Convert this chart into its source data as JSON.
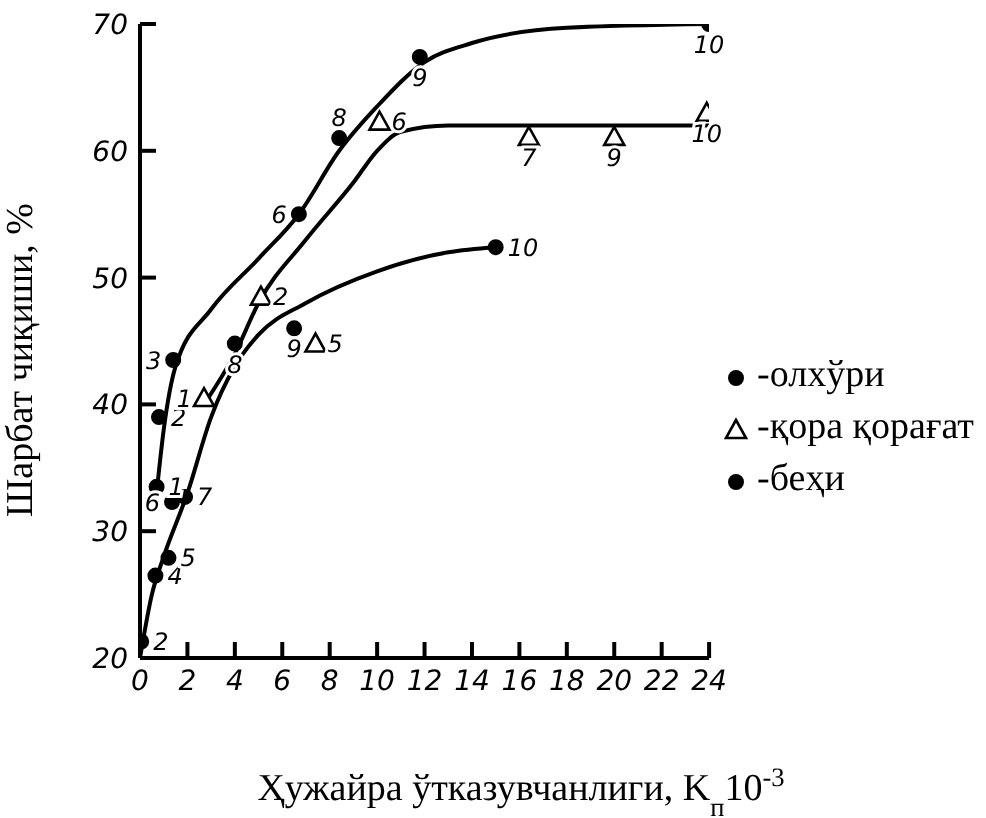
{
  "chart_data": {
    "type": "scatter",
    "xlabel": "Ҳужайра ўтказувчанлиги, K$_{п}$10$^{-3}$",
    "ylabel": "Шарбат чиқиши, %",
    "xlim": [
      0,
      24
    ],
    "xticks": [
      0,
      2,
      4,
      6,
      8,
      10,
      12,
      14,
      16,
      18,
      20,
      22,
      24
    ],
    "ylim": [
      20,
      70
    ],
    "yticks": [
      20,
      30,
      40,
      50,
      60,
      70
    ],
    "grid": false,
    "legend": "right",
    "series": [
      {
        "name": "-олхўри",
        "marker": "circle",
        "color": "#000000",
        "x": [
          0.7,
          0.8,
          1.4,
          6.7,
          8.4,
          11.8,
          24
        ],
        "values": [
          33.5,
          39,
          43.5,
          55,
          61,
          67.4,
          70
        ]
      },
      {
        "name": "-қора қорағат",
        "marker": "triangle",
        "color": "#000000",
        "x": [
          2.7,
          5.1,
          7.4,
          10.1,
          16.4,
          20,
          23.9
        ],
        "values": [
          40.5,
          48.5,
          44.8,
          62.3,
          61.1,
          61.1,
          63
        ]
      },
      {
        "name": "-беҳи",
        "marker": "circle",
        "color": "#000000",
        "x": [
          0.05,
          0.65,
          1.2,
          1.35,
          1.9,
          4,
          6.5,
          15
        ],
        "values": [
          21.3,
          26.5,
          27.9,
          32.3,
          32.7,
          44.8,
          46,
          52.4
        ]
      },
      {
        "type": "line",
        "marker": "none",
        "color": "#000000",
        "x": [
          0.7,
          1,
          1.5,
          3,
          5,
          6.7,
          8.4,
          10,
          12,
          14,
          18,
          24
        ],
        "values": [
          33,
          38,
          43,
          47.5,
          51.5,
          55,
          60,
          63.5,
          67,
          68.5,
          69.7,
          70
        ]
      },
      {
        "type": "line",
        "marker": "none",
        "color": "#000000",
        "x": [
          2.7,
          4,
          5,
          7,
          9,
          10,
          11,
          13,
          24
        ],
        "values": [
          40,
          44,
          48,
          53,
          57.5,
          60,
          61.5,
          62,
          62
        ]
      },
      {
        "type": "line",
        "marker": "none",
        "color": "#000000",
        "x": [
          0,
          0.5,
          1,
          2,
          3,
          4,
          5,
          7,
          10,
          13,
          15
        ],
        "values": [
          20,
          25,
          28,
          33,
          39,
          43,
          45.5,
          48,
          50.5,
          52,
          52.4
        ]
      }
    ],
    "annotations": [
      {
        "text": "1",
        "x": 0.7,
        "y": 33.5
      },
      {
        "text": "2",
        "x": 0.8,
        "y": 39
      },
      {
        "text": "3",
        "x": 1.4,
        "y": 43.5
      },
      {
        "text": "6",
        "x": 6.7,
        "y": 55
      },
      {
        "text": "8",
        "x": 8.4,
        "y": 61
      },
      {
        "text": "9",
        "x": 11.8,
        "y": 67.4
      },
      {
        "text": "10",
        "x": 24,
        "y": 70
      },
      {
        "text": "1",
        "x": 2.7,
        "y": 40.5
      },
      {
        "text": "2",
        "x": 5.1,
        "y": 48.5
      },
      {
        "text": "5",
        "x": 7.4,
        "y": 44.8
      },
      {
        "text": "6",
        "x": 10.1,
        "y": 62.3
      },
      {
        "text": "7",
        "x": 16.4,
        "y": 61.1
      },
      {
        "text": "9",
        "x": 20,
        "y": 61.1
      },
      {
        "text": "10",
        "x": 23.9,
        "y": 63
      },
      {
        "text": "2",
        "x": 0.05,
        "y": 21.3
      },
      {
        "text": "4",
        "x": 0.65,
        "y": 26.5
      },
      {
        "text": "5",
        "x": 1.2,
        "y": 27.9
      },
      {
        "text": "6",
        "x": 1.35,
        "y": 32.3
      },
      {
        "text": "7",
        "x": 1.9,
        "y": 32.7
      },
      {
        "text": "8",
        "x": 4,
        "y": 44.8
      },
      {
        "text": "9",
        "x": 6.5,
        "y": 46
      },
      {
        "text": "10",
        "x": 15,
        "y": 52.4
      }
    ]
  }
}
